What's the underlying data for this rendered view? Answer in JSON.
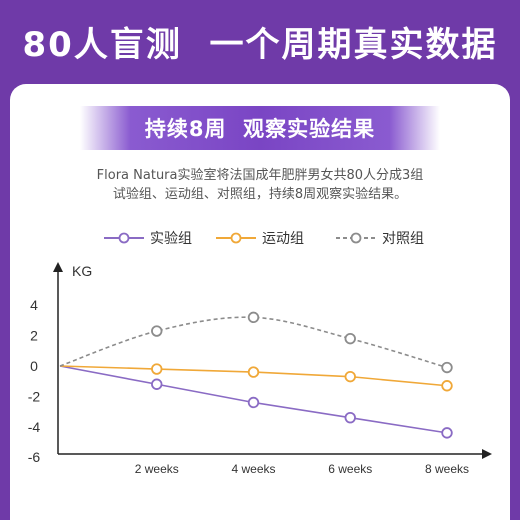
{
  "header": {
    "title": "80人盲测  一个周期真实数据"
  },
  "banner": {
    "title": "持续8周  观察实验结果"
  },
  "description": {
    "line1": "Flora Natura实验室将法国成年肥胖男女共80人分成3组",
    "line2": "试验组、运动组、对照组，持续8周观察实验结果。"
  },
  "colors": {
    "background": "#6f3aa8",
    "experimental": "#8a6bc4",
    "exercise": "#f0a838",
    "control": "#8c8c8c"
  },
  "chart_data": {
    "type": "line",
    "title": "",
    "xlabel": "",
    "ylabel": "KG",
    "categories": [
      "",
      "2 weeks",
      "4 weeks",
      "6 weeks",
      "8 weeks"
    ],
    "x": [
      0,
      2,
      4,
      6,
      8
    ],
    "ylim": [
      -6,
      4
    ],
    "yticks": [
      "4",
      "2",
      "0",
      "-2",
      "-4",
      "-6"
    ],
    "ytick_values": [
      4,
      2,
      0,
      -2,
      -4,
      -6
    ],
    "grid": false,
    "legend_position": "top",
    "series": [
      {
        "name": "实验组",
        "key": "experimental",
        "style": "solid",
        "values": [
          0,
          -1.2,
          -2.4,
          -3.4,
          -4.4
        ]
      },
      {
        "name": "运动组",
        "key": "exercise",
        "style": "solid",
        "values": [
          0,
          -0.2,
          -0.4,
          -0.7,
          -1.3
        ]
      },
      {
        "name": "对照组",
        "key": "control",
        "style": "dashed",
        "values": [
          0,
          2.3,
          3.2,
          1.8,
          -0.1
        ]
      }
    ]
  }
}
